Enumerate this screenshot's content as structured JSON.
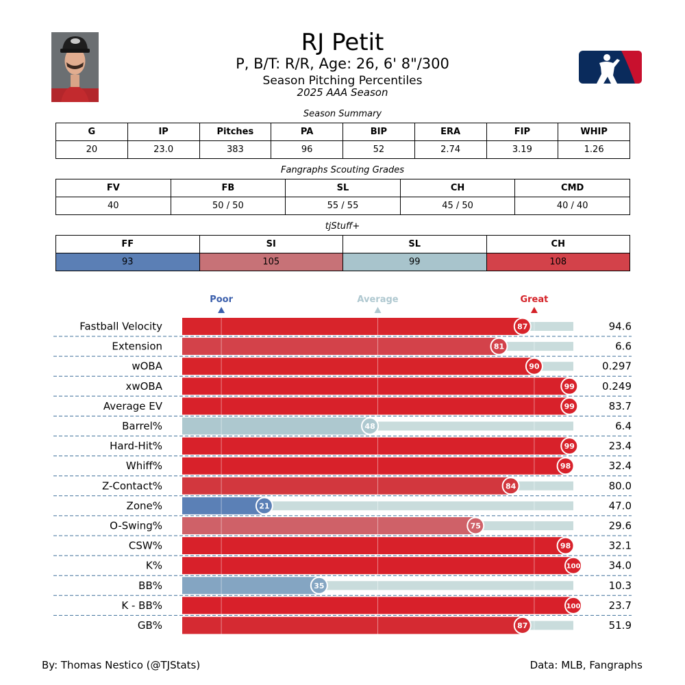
{
  "player": {
    "name": "RJ Petit",
    "subtitle": "P, B/T: R/R, Age: 26, 6' 8\"/300",
    "section_title": "Season Pitching Percentiles",
    "season": "2025 AAA Season"
  },
  "season_summary": {
    "caption": "Season Summary",
    "headers": [
      "G",
      "IP",
      "Pitches",
      "PA",
      "BIP",
      "ERA",
      "FIP",
      "WHIP"
    ],
    "values": [
      "20",
      "23.0",
      "383",
      "96",
      "52",
      "2.74",
      "3.19",
      "1.26"
    ]
  },
  "scouting": {
    "caption": "Fangraphs Scouting Grades",
    "headers": [
      "FV",
      "FB",
      "SL",
      "CH",
      "CMD"
    ],
    "values": [
      "40",
      "50 / 50",
      "55 / 55",
      "45 / 50",
      "40 / 40"
    ]
  },
  "tjstuff": {
    "caption": "tjStuff+",
    "headers": [
      "FF",
      "SI",
      "SL",
      "CH"
    ],
    "values": [
      "93",
      "105",
      "99",
      "108"
    ],
    "colors": [
      "#5b7fb5",
      "#c77277",
      "#a8c4cc",
      "#d3424a"
    ]
  },
  "chart_data": {
    "type": "bar",
    "orientation": "horizontal",
    "title": "Season Pitching Percentiles",
    "xlim": [
      0,
      100
    ],
    "markers": [
      {
        "label": "Poor",
        "value": 10,
        "color": "#3a5eab"
      },
      {
        "label": "Average",
        "value": 50,
        "color": "#afc8d0"
      },
      {
        "label": "Great",
        "value": 90,
        "color": "#d42127"
      }
    ],
    "categories": [
      "Fastball Velocity",
      "Extension",
      "wOBA",
      "xwOBA",
      "Average EV",
      "Barrel%",
      "Hard-Hit%",
      "Whiff%",
      "Z-Contact%",
      "Zone%",
      "O-Swing%",
      "CSW%",
      "K%",
      "BB%",
      "K - BB%",
      "GB%"
    ],
    "percentiles": [
      87,
      81,
      90,
      99,
      99,
      48,
      99,
      98,
      84,
      21,
      75,
      98,
      100,
      35,
      100,
      87
    ],
    "stat_values": [
      "94.6",
      "6.6",
      "0.297",
      "0.249",
      "83.7",
      "6.4",
      "23.4",
      "32.4",
      "80.0",
      "47.0",
      "29.6",
      "32.1",
      "34.0",
      "10.3",
      "23.7",
      "51.9"
    ],
    "bar_colors": [
      "#d8242b",
      "#d3424a",
      "#d8232a",
      "#d8212a",
      "#d8212a",
      "#adc8cf",
      "#d8212a",
      "#d8212a",
      "#d2373e",
      "#5b80b6",
      "#cf6168",
      "#d8212a",
      "#d8202a",
      "#84a5c2",
      "#d8202a",
      "#d52a32"
    ],
    "track_color": "#c9dcdc"
  },
  "footer": {
    "left": "By: Thomas Nestico (@TJStats)",
    "right": "Data: MLB, Fangraphs"
  }
}
